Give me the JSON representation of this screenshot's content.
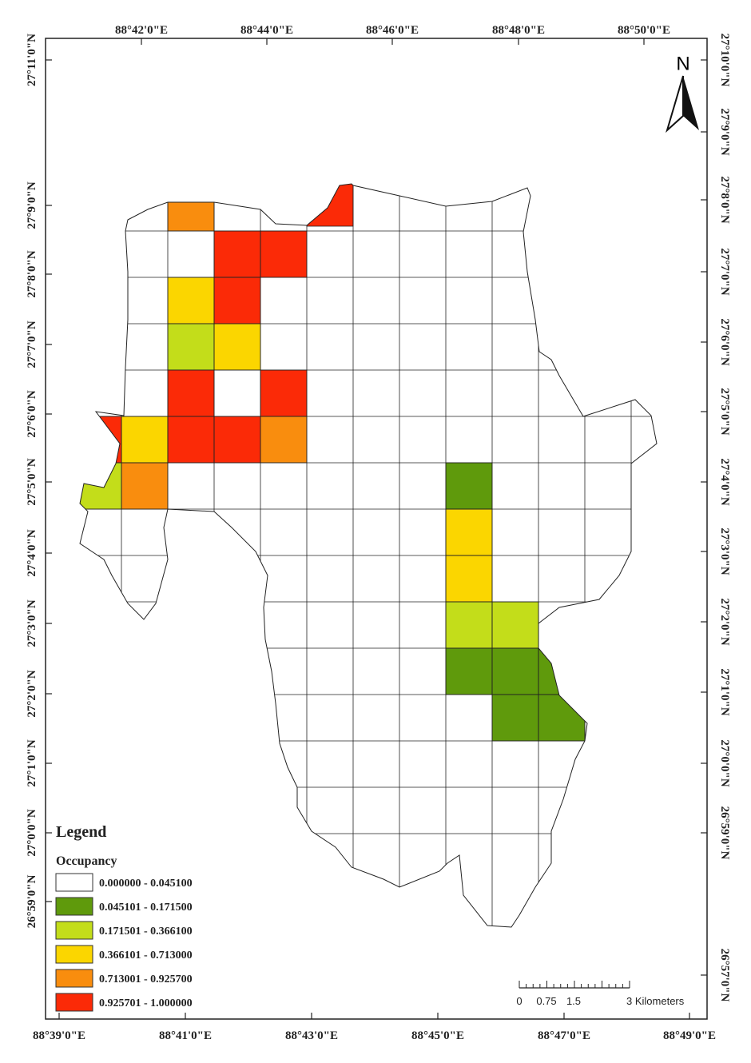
{
  "map": {
    "top_labels": [
      "88°42'0\"E",
      "88°44'0\"E",
      "88°46'0\"E",
      "88°48'0\"E",
      "88°50'0\"E"
    ],
    "bottom_labels": [
      "88°39'0\"E",
      "88°41'0\"E",
      "88°43'0\"E",
      "88°45'0\"E",
      "88°47'0\"E",
      "88°49'0\"E"
    ],
    "left_labels": [
      "27°11'0\"N",
      "27°9'0\"N",
      "27°8'0\"N",
      "27°7'0\"N",
      "27°6'0\"N",
      "27°5'0\"N",
      "27°4'0\"N",
      "27°3'0\"N",
      "27°2'0\"N",
      "27°1'0\"N",
      "27°0'0\"N",
      "26°59'0\"N"
    ],
    "right_labels": [
      "27°10'0\"N",
      "27°9'0\"N",
      "27°8'0\"N",
      "27°7'0\"N",
      "27°6'0\"N",
      "27°5'0\"N",
      "27°4'0\"N",
      "27°3'0\"N",
      "27°2'0\"N",
      "27°1'0\"N",
      "27°0'0\"N",
      "26°59'0\"N",
      "26°57'0\"N"
    ],
    "north": "N"
  },
  "legend": {
    "title": "Legend",
    "subtitle": "Occupancy",
    "items": [
      {
        "label": "0.000000 - 0.045100",
        "color": "#ffffff"
      },
      {
        "label": "0.045101 - 0.171500",
        "color": "#5f9a0c"
      },
      {
        "label": "0.171501 - 0.366100",
        "color": "#c3dd1a"
      },
      {
        "label": "0.366101 - 0.713000",
        "color": "#fbd600"
      },
      {
        "label": "0.713001 - 0.925700",
        "color": "#f98d0e"
      },
      {
        "label": "0.925701 - 1.000000",
        "color": "#fb2a07"
      }
    ]
  },
  "scale_bar": {
    "labels": [
      "0",
      "0.75",
      "1.5",
      "3 Kilometers"
    ]
  }
}
